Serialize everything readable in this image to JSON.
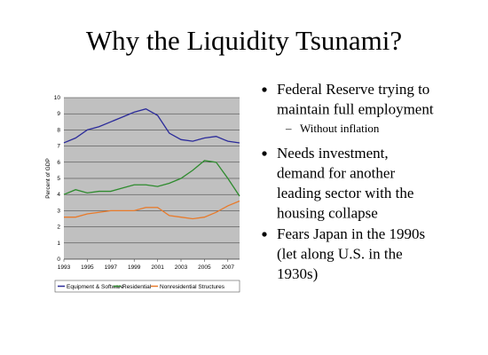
{
  "title": "Why the Liquidity Tsunami?",
  "chart_data": {
    "type": "line",
    "y_label": "Percent of GDP",
    "x": [
      1993,
      1994,
      1995,
      1996,
      1997,
      1998,
      1999,
      2000,
      2001,
      2002,
      2003,
      2004,
      2005,
      2006,
      2007,
      2008
    ],
    "series": [
      {
        "name": "Equipment & Software",
        "color": "#2b2b9a",
        "values": [
          7.2,
          7.5,
          8.0,
          8.2,
          8.5,
          8.8,
          9.1,
          9.3,
          8.9,
          7.8,
          7.4,
          7.3,
          7.5,
          7.6,
          7.3,
          7.2
        ]
      },
      {
        "name": "Residential",
        "color": "#2e8b2e",
        "values": [
          4.0,
          4.3,
          4.1,
          4.2,
          4.2,
          4.4,
          4.6,
          4.6,
          4.5,
          4.7,
          5.0,
          5.5,
          6.1,
          6.0,
          5.0,
          3.9
        ]
      },
      {
        "name": "Nonresidential Structures",
        "color": "#e87a2a",
        "values": [
          2.6,
          2.6,
          2.8,
          2.9,
          3.0,
          3.0,
          3.0,
          3.2,
          3.2,
          2.7,
          2.6,
          2.5,
          2.6,
          2.9,
          3.3,
          3.6
        ]
      }
    ],
    "xlim": [
      1993,
      2008
    ],
    "xticks": [
      1993,
      1995,
      1997,
      1999,
      2001,
      2003,
      2005,
      2007
    ],
    "ylim": [
      0,
      10
    ],
    "yticks": [
      0,
      1,
      2,
      3,
      4,
      5,
      6,
      7,
      8,
      9,
      10
    ],
    "grid": true
  },
  "bullets": [
    {
      "lines": [
        "Federal Reserve trying to",
        "maintain full employment"
      ],
      "sub": [
        "Without inflation"
      ]
    },
    {
      "lines": [
        "Needs investment,",
        "demand for another",
        "leading sector with the",
        "housing collapse"
      ]
    },
    {
      "lines": [
        "Fears Japan in the 1990s",
        "(let along U.S. in the",
        "1930s)"
      ]
    }
  ]
}
